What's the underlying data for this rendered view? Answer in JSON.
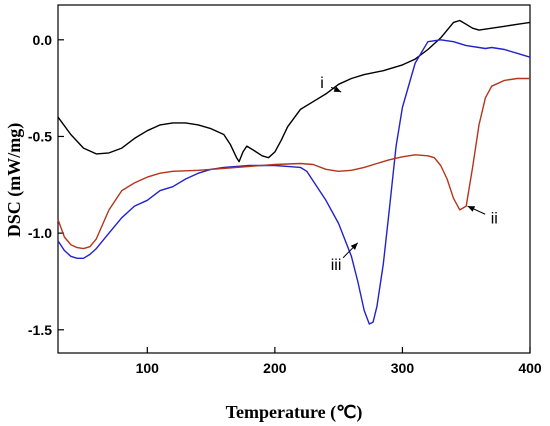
{
  "chart_data": {
    "type": "line",
    "title": "",
    "xlabel": "Temperature (℃)",
    "ylabel": "DSC (mW/mg)",
    "xlim": [
      30,
      400
    ],
    "ylim": [
      -1.62,
      0.18
    ],
    "xticks": [
      100,
      200,
      300,
      400
    ],
    "xtick_labels": [
      "100",
      "200",
      "300",
      "400"
    ],
    "yticks": [
      0.0,
      -0.5,
      -1.0,
      -1.5
    ],
    "ytick_labels": [
      "0.0",
      "-0.5",
      "-1.0",
      "-1.5"
    ],
    "grid": false,
    "legend": "none",
    "series": [
      {
        "color": "#000000",
        "points": [
          [
            30,
            -0.4
          ],
          [
            40,
            -0.49
          ],
          [
            50,
            -0.56
          ],
          [
            60,
            -0.59
          ],
          [
            70,
            -0.585
          ],
          [
            80,
            -0.56
          ],
          [
            90,
            -0.51
          ],
          [
            100,
            -0.47
          ],
          [
            110,
            -0.44
          ],
          [
            120,
            -0.43
          ],
          [
            130,
            -0.43
          ],
          [
            140,
            -0.44
          ],
          [
            150,
            -0.46
          ],
          [
            160,
            -0.49
          ],
          [
            165,
            -0.54
          ],
          [
            170,
            -0.61
          ],
          [
            172,
            -0.63
          ],
          [
            175,
            -0.58
          ],
          [
            178,
            -0.55
          ],
          [
            183,
            -0.57
          ],
          [
            190,
            -0.6
          ],
          [
            195,
            -0.61
          ],
          [
            200,
            -0.58
          ],
          [
            205,
            -0.52
          ],
          [
            210,
            -0.45
          ],
          [
            220,
            -0.36
          ],
          [
            230,
            -0.32
          ],
          [
            240,
            -0.28
          ],
          [
            250,
            -0.23
          ],
          [
            260,
            -0.2
          ],
          [
            270,
            -0.18
          ],
          [
            285,
            -0.16
          ],
          [
            300,
            -0.13
          ],
          [
            310,
            -0.1
          ],
          [
            320,
            -0.05
          ],
          [
            330,
            0.01
          ],
          [
            340,
            0.09
          ],
          [
            345,
            0.1
          ],
          [
            350,
            0.08
          ],
          [
            355,
            0.06
          ],
          [
            360,
            0.05
          ],
          [
            370,
            0.06
          ],
          [
            380,
            0.07
          ],
          [
            390,
            0.08
          ],
          [
            400,
            0.09
          ]
        ]
      },
      {
        "color": "#2222cc",
        "points": [
          [
            30,
            -1.04
          ],
          [
            35,
            -1.09
          ],
          [
            40,
            -1.12
          ],
          [
            45,
            -1.13
          ],
          [
            50,
            -1.13
          ],
          [
            55,
            -1.11
          ],
          [
            60,
            -1.08
          ],
          [
            70,
            -1.0
          ],
          [
            80,
            -0.92
          ],
          [
            90,
            -0.86
          ],
          [
            100,
            -0.83
          ],
          [
            110,
            -0.78
          ],
          [
            120,
            -0.76
          ],
          [
            130,
            -0.72
          ],
          [
            140,
            -0.69
          ],
          [
            150,
            -0.67
          ],
          [
            160,
            -0.66
          ],
          [
            170,
            -0.655
          ],
          [
            180,
            -0.65
          ],
          [
            190,
            -0.65
          ],
          [
            200,
            -0.65
          ],
          [
            210,
            -0.655
          ],
          [
            220,
            -0.66
          ],
          [
            225,
            -0.68
          ],
          [
            230,
            -0.73
          ],
          [
            240,
            -0.83
          ],
          [
            250,
            -0.95
          ],
          [
            260,
            -1.12
          ],
          [
            265,
            -1.25
          ],
          [
            270,
            -1.4
          ],
          [
            274,
            -1.47
          ],
          [
            277,
            -1.46
          ],
          [
            280,
            -1.38
          ],
          [
            285,
            -1.16
          ],
          [
            290,
            -0.86
          ],
          [
            295,
            -0.55
          ],
          [
            300,
            -0.35
          ],
          [
            310,
            -0.12
          ],
          [
            320,
            -0.01
          ],
          [
            330,
            0.0
          ],
          [
            340,
            -0.01
          ],
          [
            350,
            -0.03
          ],
          [
            360,
            -0.04
          ],
          [
            365,
            -0.045
          ],
          [
            370,
            -0.04
          ],
          [
            380,
            -0.05
          ],
          [
            390,
            -0.07
          ],
          [
            400,
            -0.09
          ]
        ]
      },
      {
        "color": "#b5341c",
        "points": [
          [
            30,
            -0.93
          ],
          [
            35,
            -1.02
          ],
          [
            40,
            -1.06
          ],
          [
            45,
            -1.075
          ],
          [
            50,
            -1.08
          ],
          [
            55,
            -1.07
          ],
          [
            60,
            -1.03
          ],
          [
            70,
            -0.88
          ],
          [
            80,
            -0.78
          ],
          [
            90,
            -0.74
          ],
          [
            100,
            -0.71
          ],
          [
            110,
            -0.69
          ],
          [
            120,
            -0.68
          ],
          [
            140,
            -0.675
          ],
          [
            160,
            -0.665
          ],
          [
            180,
            -0.655
          ],
          [
            200,
            -0.645
          ],
          [
            220,
            -0.64
          ],
          [
            230,
            -0.645
          ],
          [
            240,
            -0.67
          ],
          [
            250,
            -0.68
          ],
          [
            260,
            -0.675
          ],
          [
            270,
            -0.66
          ],
          [
            280,
            -0.64
          ],
          [
            290,
            -0.62
          ],
          [
            300,
            -0.605
          ],
          [
            310,
            -0.595
          ],
          [
            320,
            -0.6
          ],
          [
            325,
            -0.61
          ],
          [
            330,
            -0.65
          ],
          [
            335,
            -0.72
          ],
          [
            340,
            -0.82
          ],
          [
            345,
            -0.88
          ],
          [
            350,
            -0.86
          ],
          [
            355,
            -0.66
          ],
          [
            360,
            -0.44
          ],
          [
            365,
            -0.3
          ],
          [
            370,
            -0.24
          ],
          [
            380,
            -0.21
          ],
          [
            390,
            -0.2
          ],
          [
            400,
            -0.2
          ]
        ]
      }
    ],
    "annotations": [
      {
        "text": "i",
        "x": 237,
        "y": -0.25,
        "arrow_to": [
          252,
          -0.27
        ]
      },
      {
        "text": "ii",
        "x": 372,
        "y": -0.95,
        "arrow_to": [
          351,
          -0.86
        ]
      },
      {
        "text": "iii",
        "x": 248,
        "y": -1.19,
        "arrow_to": [
          265,
          -1.05
        ]
      }
    ]
  }
}
